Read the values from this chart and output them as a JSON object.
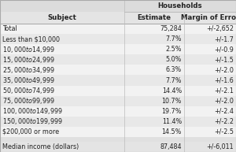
{
  "title": "Households",
  "col_headers": [
    "Subject",
    "Estimate",
    "Margin of Error"
  ],
  "rows": [
    [
      "Total",
      "75,284",
      "+/-2,652"
    ],
    [
      "Less than $10,000",
      "7.7%",
      "+/-1.7"
    ],
    [
      "$10,000 to $14,999",
      "2.5%",
      "+/-0.9"
    ],
    [
      "$15,000 to $24,999",
      "5.0%",
      "+/-1.5"
    ],
    [
      "$25,000 to $34,999",
      "6.3%",
      "+/-2.0"
    ],
    [
      "$35,000 to $49,999",
      "7.7%",
      "+/-1.6"
    ],
    [
      "$50,000 to $74,999",
      "14.4%",
      "+/-2.1"
    ],
    [
      "$75,000 to $99,999",
      "10.7%",
      "+/-2.0"
    ],
    [
      "$100,000 to $149,999",
      "19.7%",
      "+/-2.4"
    ],
    [
      "$150,000 to $199,999",
      "11.4%",
      "+/-2.2"
    ],
    [
      "$200,000 or more",
      "14.5%",
      "+/-2.5"
    ]
  ],
  "footer_row": [
    "Median income (dollars)",
    "87,484",
    "+/-6,011"
  ],
  "bg_header_top": "#dcdcdc",
  "bg_col_header": "#e4e4e4",
  "bg_odd": "#f2f2f2",
  "bg_even": "#e8e8e8",
  "bg_footer": "#e4e4e4",
  "bg_gap": "#e0e0e0",
  "text_color": "#222222",
  "font_size": 5.8,
  "header_font_size": 6.2,
  "figw": 3.0,
  "figh": 1.93,
  "dpi": 100
}
